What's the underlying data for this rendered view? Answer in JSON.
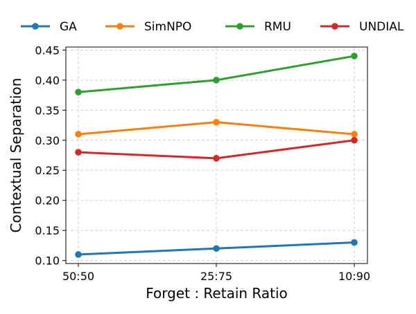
{
  "chart_data": {
    "type": "line",
    "x": [
      "50:50",
      "25:75",
      "10:90"
    ],
    "xlabel": "Forget : Retain Ratio",
    "ylabel": "Contextual Separation",
    "ylim": [
      0.095,
      0.455
    ],
    "yticks": [
      0.1,
      0.15,
      0.2,
      0.25,
      0.3,
      0.35,
      0.4,
      0.45
    ],
    "ytick_labels": [
      "0.10",
      "0.15",
      "0.20",
      "0.25",
      "0.30",
      "0.35",
      "0.40",
      "0.45"
    ],
    "grid": true,
    "legend_position": "top",
    "series": [
      {
        "name": "GA",
        "color": "#1f77b4",
        "values": [
          0.11,
          0.12,
          0.13
        ]
      },
      {
        "name": "SimNPO",
        "color": "#ff7f0e",
        "values": [
          0.31,
          0.33,
          0.31
        ]
      },
      {
        "name": "RMU",
        "color": "#2ca02c",
        "values": [
          0.38,
          0.4,
          0.44
        ]
      },
      {
        "name": "UNDIAL",
        "color": "#d62728",
        "values": [
          0.28,
          0.27,
          0.3
        ]
      }
    ]
  }
}
